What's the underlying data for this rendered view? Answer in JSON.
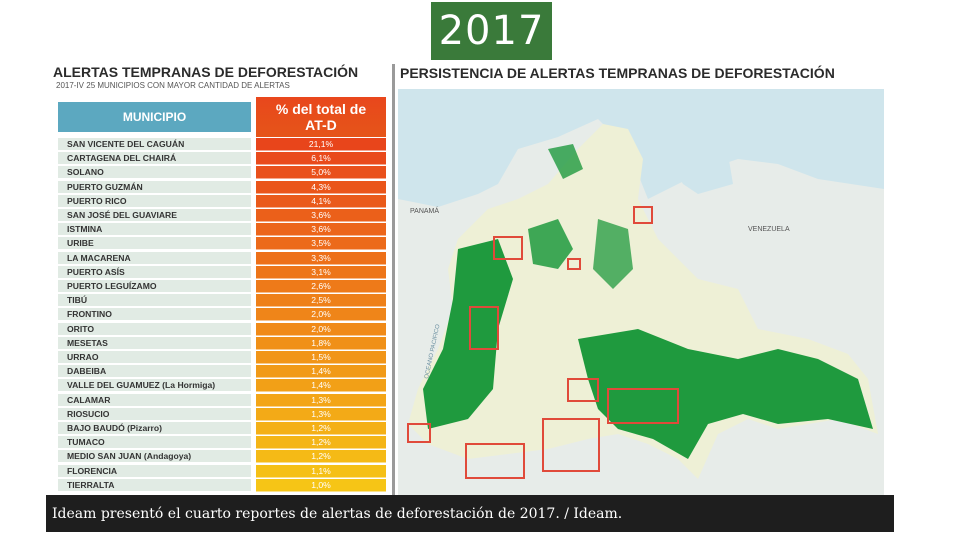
{
  "slide": {
    "year": "2017"
  },
  "table_panel": {
    "title": "ALERTAS TEMPRANAS DE DEFORESTACIÓN",
    "subtitle": "2017-IV 25 MUNICIPIOS CON MAYOR CANTIDAD DE ALERTAS",
    "col_municipio": "MUNICIPIO",
    "col_pct_line1": "% del total de",
    "col_pct_line2": "AT-D",
    "rows": [
      {
        "name": "SAN VICENTE DEL CAGUÁN",
        "value": "21,1%"
      },
      {
        "name": "CARTAGENA DEL CHAIRÁ",
        "value": "6,1%"
      },
      {
        "name": "SOLANO",
        "value": "5,0%"
      },
      {
        "name": "PUERTO GUZMÁN",
        "value": "4,3%"
      },
      {
        "name": "PUERTO RICO",
        "value": "4,1%"
      },
      {
        "name": "SAN JOSÉ DEL GUAVIARE",
        "value": "3,6%"
      },
      {
        "name": "ISTMINA",
        "value": "3,6%"
      },
      {
        "name": "URIBE",
        "value": "3,5%"
      },
      {
        "name": "LA MACARENA",
        "value": "3,3%"
      },
      {
        "name": "PUERTO ASÍS",
        "value": "3,1%"
      },
      {
        "name": "PUERTO LEGUÍZAMO",
        "value": "2,6%"
      },
      {
        "name": "TIBÚ",
        "value": "2,5%"
      },
      {
        "name": "FRONTINO",
        "value": "2,0%"
      },
      {
        "name": "ORITO",
        "value": "2,0%"
      },
      {
        "name": "MESETAS",
        "value": "1,8%"
      },
      {
        "name": "URRAO",
        "value": "1,5%"
      },
      {
        "name": "DABEIBA",
        "value": "1,4%"
      },
      {
        "name": "VALLE DEL GUAMUEZ (La Hormiga)",
        "value": "1,4%"
      },
      {
        "name": "CALAMAR",
        "value": "1,3%"
      },
      {
        "name": "RIOSUCIO",
        "value": "1,3%"
      },
      {
        "name": "BAJO BAUDÓ (Pizarro)",
        "value": "1,2%"
      },
      {
        "name": "TUMACO",
        "value": "1,2%"
      },
      {
        "name": "MEDIO SAN JUAN (Andagoya)",
        "value": "1,2%"
      },
      {
        "name": "FLORENCIA",
        "value": "1,1%"
      },
      {
        "name": "TIERRALTA",
        "value": "1,0%"
      }
    ],
    "colors": {
      "header_municipio": "#5ca8c0",
      "name_cell": "#e1ebe4",
      "value_top": "#e8451b",
      "value_bottom": "#f6c516"
    }
  },
  "map_panel": {
    "title": "PERSISTENCIA DE ALERTAS TEMPRANAS DE DEFORESTACIÓN",
    "labels": {
      "panama": "PANAMÁ",
      "venezuela": "VENEZUELA",
      "ocean": "OCEANO PACIFICO"
    },
    "colors": {
      "forest": "#1f9a3e",
      "non_forest": "#eef0d6",
      "sea": "#cfe5ec",
      "neighbors": "#e7ece9",
      "alert_box": "#e04a3a"
    }
  },
  "caption": "Ideam presentó el cuarto reportes de alertas de deforestación de 2017.  / Ideam."
}
